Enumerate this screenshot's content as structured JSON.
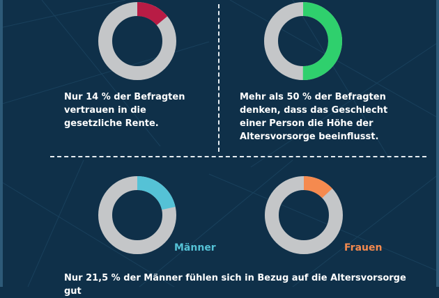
{
  "colors": {
    "background": "#0f3049",
    "track": "#c4c6c8",
    "trust": "#b81c45",
    "gender": "#2fd06d",
    "men": "#55c2d6",
    "women": "#f58a4f",
    "divider": "#e8eef2"
  },
  "chart_data": [
    {
      "type": "pie",
      "variant": "donut",
      "values": [
        14,
        86
      ],
      "unit": "%",
      "caption": "Nur 14 % der Befragten vertrauen in die gesetzliche Rente."
    },
    {
      "type": "pie",
      "variant": "donut",
      "values": [
        50,
        50
      ],
      "unit": "%",
      "caption": "Mehr als 50 % der Befragten denken, dass das Geschlecht einer Person die Höhe der Altersvorsorge beeinflusst."
    },
    {
      "type": "pie",
      "variant": "donut",
      "values": [
        21.5,
        78.5
      ],
      "unit": "%",
      "legend": "Männer"
    },
    {
      "type": "pie",
      "variant": "donut",
      "values": [
        13,
        87
      ],
      "unit": "%",
      "legend": "Frauen"
    }
  ],
  "captions": {
    "trust": "Nur 14 % der Befragten vertrauen in die gesetzliche Rente.",
    "gender": "Mehr als 50 % der Befragten denken, dass das Geschlecht einer Person die Höhe der Altersvorsorge beeinflusst.",
    "men_vs_women": "Nur 21,5 % der Männer fühlen sich in Bezug auf die Altersvorsorge gut"
  },
  "legend": {
    "men": "Männer",
    "women": "Frauen"
  }
}
